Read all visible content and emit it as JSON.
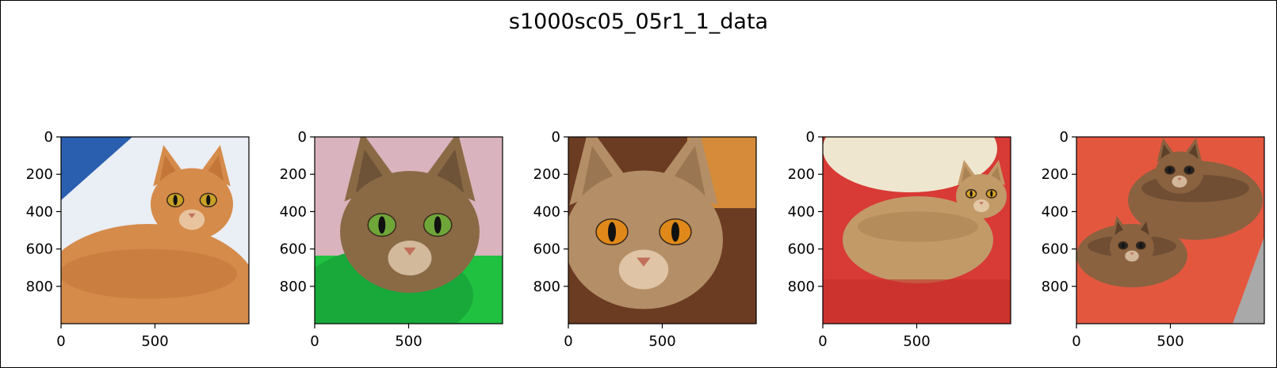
{
  "figure": {
    "title": "s1000sc05_05r1_1_data"
  },
  "chart_data": [
    {
      "type": "image",
      "subject": "orange tabby cat lying on white blanket",
      "palette": {
        "bg": "#eaeef5",
        "fur": "#d58b4a",
        "fur_dark": "#b8692d",
        "eye": "#c9a126",
        "accent": "#2a5fb0"
      },
      "x_ticks": [
        0,
        500
      ],
      "y_ticks": [
        0,
        200,
        400,
        600,
        800
      ],
      "xlim": [
        0,
        1000
      ],
      "ylim": [
        1000,
        0
      ]
    },
    {
      "type": "image",
      "subject": "close-up of ticked tabby cat face on green fabric",
      "palette": {
        "bg": "#d9b3bd",
        "fur": "#8a6a45",
        "fur_dark": "#5b4430",
        "eye": "#6fa63a",
        "accent": "#20c040"
      },
      "x_ticks": [
        0,
        500
      ],
      "y_ticks": [
        0,
        200,
        400,
        600,
        800
      ],
      "xlim": [
        0,
        1000
      ],
      "ylim": [
        1000,
        0
      ]
    },
    {
      "type": "image",
      "subject": "abyssinian cat face close-up with orange eyes",
      "palette": {
        "bg": "#6b3b22",
        "fur": "#b48e66",
        "fur_dark": "#8a6644",
        "eye": "#e0891a",
        "accent": "#f0a040"
      },
      "x_ticks": [
        0,
        500
      ],
      "y_ticks": [
        0,
        200,
        400,
        600,
        800
      ],
      "xlim": [
        0,
        1000
      ],
      "ylim": [
        1000,
        0
      ]
    },
    {
      "type": "image",
      "subject": "abyssinian cat lying on red cushion",
      "palette": {
        "bg": "#d83a35",
        "fur": "#c29a68",
        "fur_dark": "#9a7448",
        "eye": "#d8a32a",
        "accent": "#efe6cf"
      },
      "x_ticks": [
        0,
        500
      ],
      "y_ticks": [
        0,
        200,
        400,
        600,
        800
      ],
      "xlim": [
        0,
        1000
      ],
      "ylim": [
        1000,
        0
      ]
    },
    {
      "type": "image",
      "subject": "two abyssinian kittens on red blanket",
      "palette": {
        "bg": "#e4573f",
        "fur": "#8a6240",
        "fur_dark": "#3d2a1c",
        "eye": "#222222",
        "accent": "#a9a9a9"
      },
      "x_ticks": [
        0,
        500
      ],
      "y_ticks": [
        0,
        200,
        400,
        600,
        800
      ],
      "xlim": [
        0,
        1000
      ],
      "ylim": [
        1000,
        0
      ]
    }
  ]
}
